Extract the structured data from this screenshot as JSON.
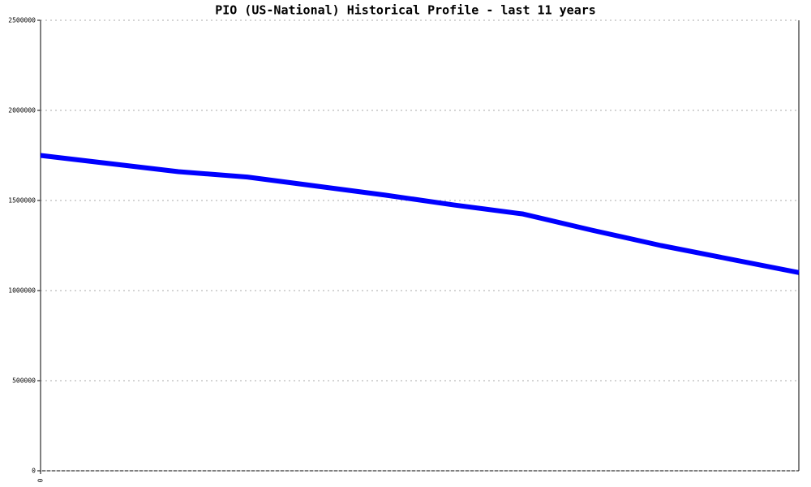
{
  "chart_data": {
    "type": "line",
    "title": "PIO (US-National) Historical Profile - last 11 years",
    "x": [
      0,
      1,
      2,
      3,
      4,
      5,
      6,
      7,
      8,
      9,
      10,
      11
    ],
    "series": [
      {
        "color": "#0000ff",
        "values": [
          1750000,
          1705000,
          1660000,
          1630000,
          1580000,
          1530000,
          1475000,
          1425000,
          1335000,
          1250000,
          1175000,
          1100000
        ]
      }
    ],
    "xlim": [
      0,
      11
    ],
    "xticks": [
      0
    ],
    "ylim": [
      0,
      2500000
    ],
    "yticks": [
      0,
      500000,
      1000000,
      1500000,
      2000000,
      2500000
    ],
    "grid": true
  }
}
